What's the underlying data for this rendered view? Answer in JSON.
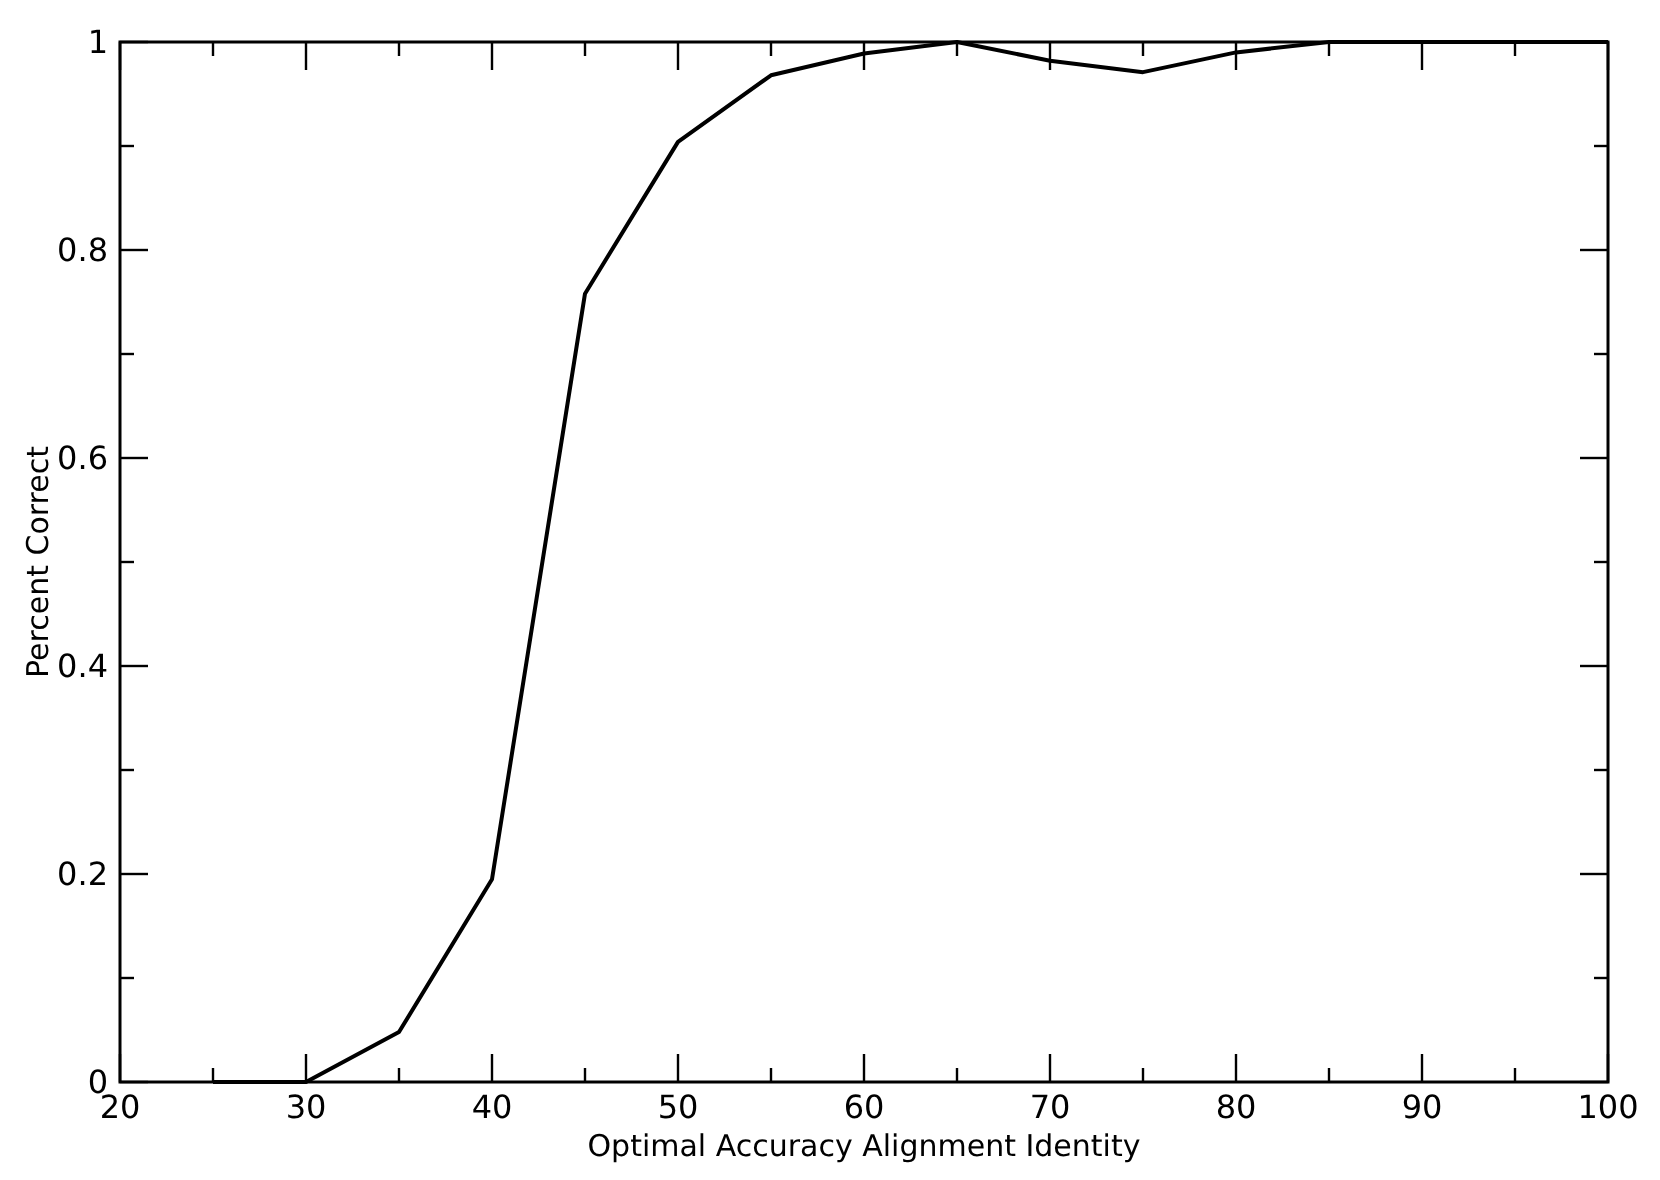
{
  "chart_data": {
    "type": "line",
    "xlabel": "Optimal Accuracy Alignment Identity",
    "ylabel": "Percent Correct",
    "x": [
      25,
      30,
      35,
      40,
      45,
      50,
      55,
      60,
      65,
      70,
      75,
      80,
      85,
      90,
      95,
      100
    ],
    "series": [
      {
        "color": "#000000",
        "values": [
          0,
          0,
          0.048,
          0.195,
          0.758,
          0.904,
          0.968,
          0.989,
          1,
          0.982,
          0.971,
          0.99,
          1,
          1,
          1,
          1
        ]
      }
    ],
    "xlim": [
      20,
      100
    ],
    "ylim": [
      0,
      1
    ],
    "xticks": [
      20,
      {
        "value": 25,
        "label": null
      },
      30,
      {
        "value": 35,
        "label": null
      },
      40,
      {
        "value": 45,
        "label": null
      },
      50,
      {
        "value": 55,
        "label": null
      },
      60,
      {
        "value": 65,
        "label": null
      },
      70,
      {
        "value": 75,
        "label": null
      },
      80,
      {
        "value": 85,
        "label": null
      },
      90,
      {
        "value": 95,
        "label": null
      },
      100
    ],
    "yticks": [
      0,
      {
        "value": 0.1,
        "label": null
      },
      0.2,
      {
        "value": 0.3,
        "label": null
      },
      0.4,
      {
        "value": 0.5,
        "label": null
      },
      0.6,
      {
        "value": 0.7,
        "label": null
      },
      0.8,
      {
        "value": 0.9,
        "label": null
      },
      1
    ],
    "grid": false,
    "marker": "none",
    "line_style": "solid"
  }
}
